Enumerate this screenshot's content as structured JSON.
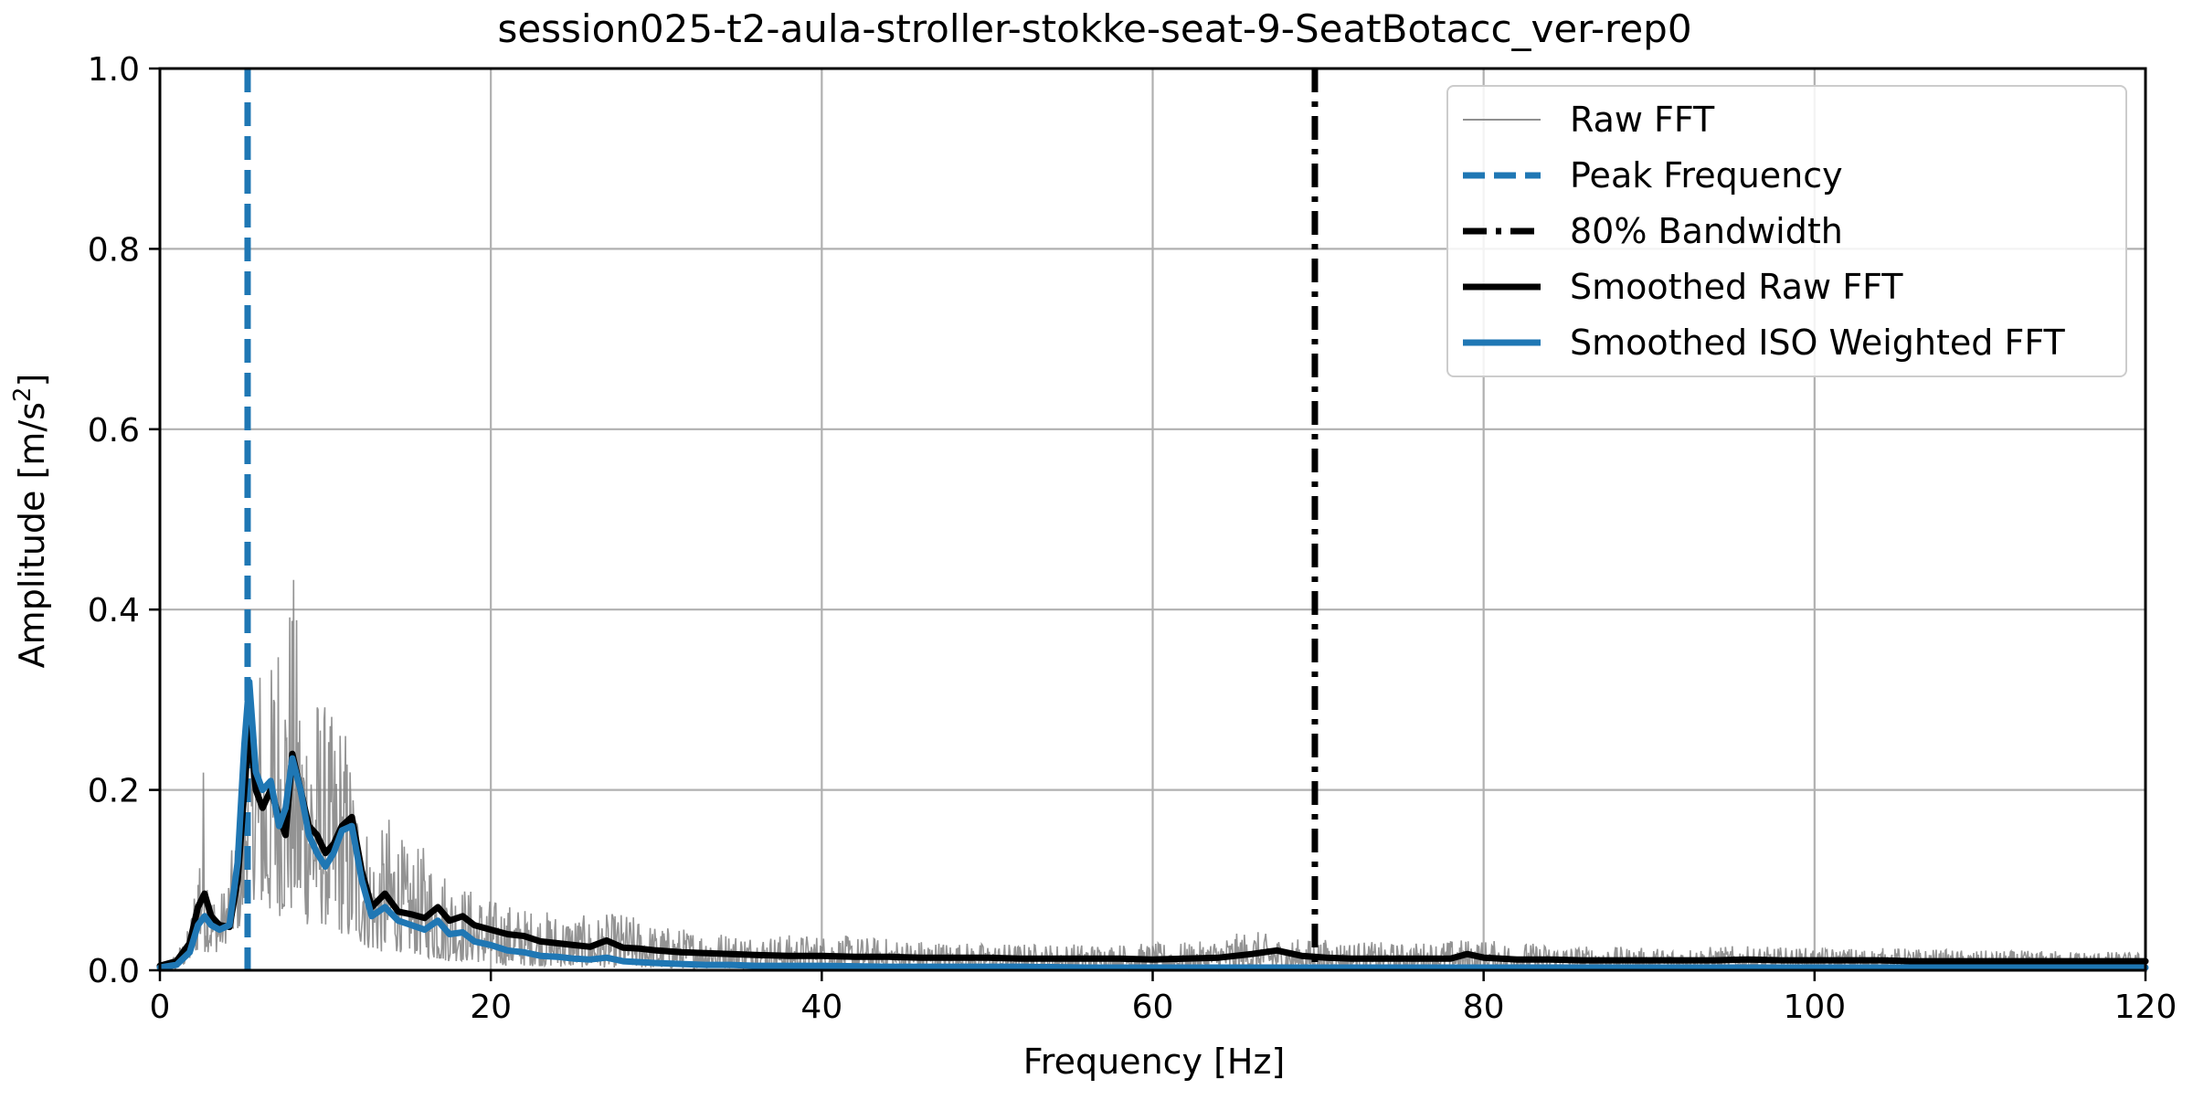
{
  "chart_data": {
    "type": "line",
    "title": "session025-t2-aula-stroller-stokke-seat-9-SeatBotacc_ver-rep0",
    "xlabel": "Frequency [Hz]",
    "ylabel": "Amplitude [m/s",
    "ylabel_superscript": "2",
    "ylabel_suffix": "]",
    "xlim": [
      0,
      120
    ],
    "ylim": [
      0,
      1.0
    ],
    "grid": true,
    "legend_position": "top-right",
    "x_ticks": [
      0,
      20,
      40,
      60,
      80,
      100,
      120
    ],
    "x_tick_labels": [
      "0",
      "20",
      "40",
      "60",
      "80",
      "100",
      "120"
    ],
    "y_ticks": [
      0.0,
      0.2,
      0.4,
      0.6,
      0.8,
      1.0
    ],
    "y_tick_labels": [
      "0.0",
      "0.2",
      "0.4",
      "0.6",
      "0.8",
      "1.0"
    ],
    "series": [
      {
        "name": "Raw FFT",
        "style": "thin",
        "color": "#808080",
        "envelope_x": [
          0,
          1,
          1.8,
          2.2,
          2.6,
          3.0,
          3.5,
          4.0,
          4.5,
          5.0,
          5.3,
          5.6,
          6.0,
          6.5,
          7.0,
          7.5,
          8.0,
          8.5,
          9.0,
          9.5,
          10.0,
          10.5,
          11.0,
          11.5,
          12.0,
          13.0,
          14.0,
          15.0,
          16.0,
          17.0,
          18.0,
          19.0,
          20.0,
          22.0,
          24.0,
          26.0,
          28.0,
          30.0,
          33.0,
          36.0,
          40.0,
          45.0,
          50.0,
          55.0,
          60.0,
          63.0,
          66.0,
          68.0,
          70.0,
          75.0,
          79.0,
          85.0,
          90.0,
          95.0,
          100.0,
          105.0,
          110.0,
          115.0,
          120.0
        ],
        "envelope_hi": [
          0.005,
          0.02,
          0.05,
          0.12,
          0.25,
          0.1,
          0.08,
          0.1,
          0.15,
          0.2,
          0.35,
          0.3,
          0.37,
          0.28,
          0.42,
          0.38,
          0.46,
          0.35,
          0.33,
          0.32,
          0.3,
          0.28,
          0.3,
          0.25,
          0.2,
          0.14,
          0.18,
          0.13,
          0.14,
          0.12,
          0.1,
          0.09,
          0.08,
          0.07,
          0.065,
          0.06,
          0.065,
          0.05,
          0.045,
          0.04,
          0.04,
          0.035,
          0.03,
          0.03,
          0.03,
          0.032,
          0.045,
          0.035,
          0.035,
          0.03,
          0.035,
          0.028,
          0.025,
          0.027,
          0.025,
          0.025,
          0.022,
          0.022,
          0.02
        ],
        "envelope_lo": [
          0.0,
          0.0,
          0.01,
          0.02,
          0.02,
          0.02,
          0.02,
          0.03,
          0.04,
          0.05,
          0.1,
          0.08,
          0.07,
          0.06,
          0.06,
          0.06,
          0.06,
          0.05,
          0.05,
          0.05,
          0.05,
          0.04,
          0.04,
          0.03,
          0.03,
          0.02,
          0.02,
          0.02,
          0.015,
          0.01,
          0.01,
          0.01,
          0.005,
          0.005,
          0.004,
          0.003,
          0.003,
          0.002,
          0.002,
          0.002,
          0.002,
          0.001,
          0.001,
          0.001,
          0.001,
          0.001,
          0.001,
          0.001,
          0.001,
          0.001,
          0.001,
          0.001,
          0.001,
          0.001,
          0.001,
          0.001,
          0.001,
          0.001,
          0.001
        ]
      },
      {
        "name": "Smoothed Raw FFT",
        "style": "solid",
        "color": "#000000",
        "x": [
          0,
          1.0,
          1.8,
          2.3,
          2.7,
          3.1,
          3.6,
          4.2,
          4.7,
          5.1,
          5.4,
          5.8,
          6.2,
          6.7,
          7.2,
          7.6,
          8.0,
          8.5,
          9.0,
          9.5,
          10.0,
          10.5,
          11.0,
          11.6,
          12.2,
          12.8,
          13.6,
          14.4,
          15.2,
          16.0,
          16.8,
          17.5,
          18.3,
          19.0,
          20.0,
          21.0,
          22.0,
          23.0,
          24.0,
          25.0,
          26.0,
          27.0,
          28.0,
          29.0,
          30.0,
          31.5,
          33.0,
          34.5,
          36.0,
          38.0,
          40.0,
          42.0,
          44.0,
          46.0,
          48.0,
          50.0,
          52.0,
          54.0,
          56.0,
          58.0,
          60.0,
          62.0,
          64.0,
          66.0,
          67.5,
          69.0,
          70.5,
          72.0,
          74.0,
          76.0,
          78.0,
          79.0,
          80.0,
          82.0,
          84.0,
          86.0,
          88.0,
          90.0,
          92.0,
          94.0,
          96.0,
          98.0,
          100.0,
          102.0,
          104.0,
          106.0,
          108.0,
          110.0,
          112.0,
          114.0,
          116.0,
          118.0,
          120.0
        ],
        "y": [
          0.005,
          0.01,
          0.03,
          0.07,
          0.085,
          0.06,
          0.05,
          0.048,
          0.1,
          0.2,
          0.27,
          0.2,
          0.18,
          0.2,
          0.17,
          0.15,
          0.24,
          0.2,
          0.16,
          0.15,
          0.13,
          0.14,
          0.16,
          0.17,
          0.11,
          0.07,
          0.085,
          0.065,
          0.062,
          0.058,
          0.07,
          0.055,
          0.06,
          0.05,
          0.045,
          0.04,
          0.038,
          0.032,
          0.03,
          0.028,
          0.026,
          0.033,
          0.025,
          0.024,
          0.022,
          0.02,
          0.019,
          0.018,
          0.017,
          0.016,
          0.016,
          0.015,
          0.015,
          0.014,
          0.014,
          0.014,
          0.013,
          0.013,
          0.013,
          0.013,
          0.012,
          0.013,
          0.014,
          0.018,
          0.022,
          0.016,
          0.014,
          0.013,
          0.013,
          0.013,
          0.013,
          0.018,
          0.014,
          0.012,
          0.012,
          0.011,
          0.011,
          0.011,
          0.011,
          0.011,
          0.012,
          0.011,
          0.011,
          0.011,
          0.011,
          0.01,
          0.01,
          0.01,
          0.01,
          0.01,
          0.01,
          0.01,
          0.01
        ]
      },
      {
        "name": "Smoothed ISO Weighted FFT",
        "style": "solid",
        "color": "#1f77b4",
        "x": [
          0,
          1.0,
          1.8,
          2.3,
          2.7,
          3.1,
          3.6,
          4.2,
          4.7,
          5.1,
          5.4,
          5.8,
          6.2,
          6.7,
          7.2,
          7.6,
          8.0,
          8.5,
          9.0,
          9.5,
          10.0,
          10.5,
          11.0,
          11.6,
          12.2,
          12.8,
          13.6,
          14.4,
          15.2,
          16.0,
          16.8,
          17.5,
          18.3,
          19.0,
          20.0,
          21.0,
          22.0,
          23.0,
          24.0,
          25.0,
          26.0,
          27.0,
          28.0,
          29.0,
          30.0,
          31.5,
          33.0,
          34.5,
          36.0,
          38.0,
          40.0,
          44.0,
          48.0,
          52.0,
          56.0,
          60.0,
          64.0,
          68.0,
          72.0,
          76.0,
          80.0,
          84.0,
          88.0,
          92.0,
          96.0,
          100.0,
          104.0,
          108.0,
          112.0,
          116.0,
          120.0
        ],
        "y": [
          0.003,
          0.006,
          0.02,
          0.05,
          0.06,
          0.05,
          0.045,
          0.05,
          0.12,
          0.25,
          0.32,
          0.22,
          0.2,
          0.21,
          0.16,
          0.18,
          0.235,
          0.2,
          0.15,
          0.13,
          0.115,
          0.13,
          0.155,
          0.16,
          0.1,
          0.06,
          0.07,
          0.055,
          0.05,
          0.045,
          0.055,
          0.04,
          0.042,
          0.032,
          0.028,
          0.022,
          0.02,
          0.016,
          0.015,
          0.013,
          0.012,
          0.014,
          0.01,
          0.009,
          0.008,
          0.007,
          0.006,
          0.006,
          0.005,
          0.005,
          0.005,
          0.004,
          0.004,
          0.004,
          0.003,
          0.003,
          0.003,
          0.003,
          0.003,
          0.003,
          0.003,
          0.003,
          0.003,
          0.003,
          0.003,
          0.003,
          0.003,
          0.003,
          0.003,
          0.003,
          0.003
        ]
      }
    ],
    "vertical_lines": [
      {
        "name": "Peak Frequency",
        "x": 5.3,
        "style": "dashed",
        "color": "#1f77b4"
      },
      {
        "name": "80% Bandwidth",
        "x": 69.8,
        "style": "dashdot",
        "color": "#000000"
      }
    ],
    "legend": [
      {
        "label": "Raw FFT",
        "style": "thin",
        "color": "#808080"
      },
      {
        "label": "Peak Frequency",
        "style": "dashed",
        "color": "#1f77b4"
      },
      {
        "label": "80% Bandwidth",
        "style": "dashdot",
        "color": "#000000"
      },
      {
        "label": "Smoothed Raw FFT",
        "style": "solid",
        "color": "#000000"
      },
      {
        "label": "Smoothed ISO Weighted FFT",
        "style": "solid",
        "color": "#1f77b4"
      }
    ]
  }
}
